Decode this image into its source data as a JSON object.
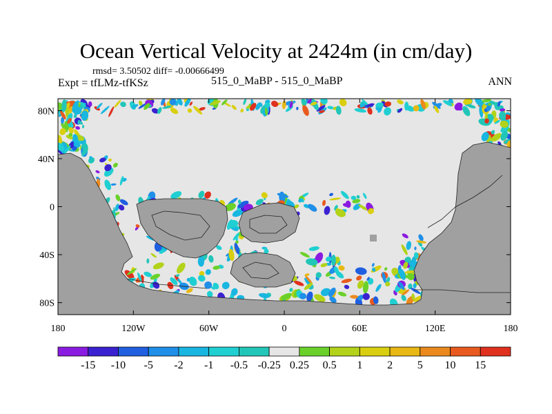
{
  "header": {
    "title": "Ocean Vertical Velocity at 2424m (in cm/day)",
    "stats": "rmsd= 3.50502 diff= -0.00666499",
    "expt": "Expt = tfLMz-tfKSz",
    "case": "515_0_MaBP - 515_0_MaBP",
    "season": "ANN"
  },
  "chart_data": {
    "type": "heatmap",
    "title": "Ocean Vertical Velocity at 2424m (in cm/day)",
    "subtitle": "515_0_MaBP - 515_0_MaBP",
    "units": "cm/day",
    "projection": "cylindrical equidistant",
    "xlim": [
      -180,
      180
    ],
    "ylim": [
      -90,
      90
    ],
    "x_ticks": [
      {
        "value": -180,
        "label": "180"
      },
      {
        "value": -120,
        "label": "120W"
      },
      {
        "value": -60,
        "label": "60W"
      },
      {
        "value": 0,
        "label": "0"
      },
      {
        "value": 60,
        "label": "60E"
      },
      {
        "value": 120,
        "label": "120E"
      },
      {
        "value": 180,
        "label": "180"
      }
    ],
    "y_ticks": [
      {
        "value": 80,
        "label": "80N"
      },
      {
        "value": 40,
        "label": "40N"
      },
      {
        "value": 0,
        "label": "0"
      },
      {
        "value": -40,
        "label": "40S"
      },
      {
        "value": -80,
        "label": "80S"
      }
    ],
    "colorbar": {
      "levels": [
        "-15",
        "-10",
        "-5",
        "-2",
        "-1",
        "-0.5",
        "-0.25",
        "0.25",
        "0.5",
        "1",
        "2",
        "5",
        "10",
        "15"
      ],
      "colors": [
        "#8a1be0",
        "#3a22d0",
        "#1f5fe0",
        "#1f8fe8",
        "#18b6e0",
        "#20cfd2",
        "#22c6b8",
        "#e6e6e6",
        "#6ad12a",
        "#b3d21a",
        "#d9cf10",
        "#e8b814",
        "#ea8a1e",
        "#e85a1e",
        "#e0301e"
      ]
    },
    "land_color": "#a0a0a0",
    "near_zero_color": "#e6e6e6",
    "rmsd": 3.50502,
    "diff": -0.00666499,
    "season": "ANN"
  }
}
